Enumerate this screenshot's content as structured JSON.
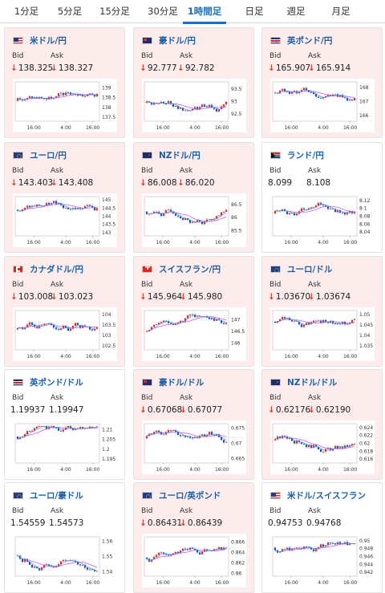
{
  "tabs": [
    {
      "label": "1分足",
      "active": false
    },
    {
      "label": "5分足",
      "active": false
    },
    {
      "label": "15分足",
      "active": false
    },
    {
      "label": "30分足",
      "active": false
    },
    {
      "label": "1時間足",
      "active": true
    },
    {
      "label": "日足",
      "active": false
    },
    {
      "label": "週足",
      "active": false
    },
    {
      "label": "月足",
      "active": false
    }
  ],
  "colors": {
    "accent": "#1a6fc4",
    "down_arrow": "#e23a2e",
    "pink_card": "#fcecec",
    "candle_up": "#e8262a",
    "candle_down": "#1e4fa8",
    "ma_long": "#e040e0",
    "ma_short": "#2aa8e0"
  },
  "labels": {
    "bid": "Bid",
    "ask": "Ask"
  },
  "cards": [
    {
      "pair": "米ドル/円",
      "flag": "us",
      "bg": "pink",
      "bid": "138.325",
      "ask": "138.327",
      "bid_down": true,
      "ask_down": true,
      "chart": {
        "ticks": [
          "139",
          "138.5",
          "138",
          "137.5"
        ],
        "times": [
          "16:00",
          "4:00",
          "16:00"
        ],
        "ylim": [
          137.3,
          139.3
        ]
      }
    },
    {
      "pair": "豪ドル/円",
      "flag": "au",
      "bg": "pink",
      "bid": "92.777",
      "ask": "92.782",
      "bid_down": true,
      "ask_down": true,
      "chart": {
        "ticks": [
          "93.5",
          "93",
          "92.5"
        ],
        "times": [
          "16:00",
          "4:00",
          "16:00"
        ],
        "ylim": [
          92.2,
          93.8
        ]
      }
    },
    {
      "pair": "英ポンド/円",
      "flag": "gb",
      "bg": "pink",
      "bid": "165.907",
      "ask": "165.914",
      "bid_down": true,
      "ask_down": true,
      "chart": {
        "ticks": [
          "168",
          "167",
          "166"
        ],
        "times": [
          "16:00",
          "4:00",
          "16:00"
        ],
        "ylim": [
          165.6,
          168.4
        ]
      }
    },
    {
      "pair": "ユーロ/円",
      "flag": "eu",
      "bg": "pink",
      "bid": "143.403",
      "ask": "143.408",
      "bid_down": true,
      "ask_down": true,
      "chart": {
        "ticks": [
          "145",
          "144.5",
          "144",
          "143.5",
          "143"
        ],
        "times": [
          "16:00",
          "4:00",
          "16:00"
        ],
        "ylim": [
          142.8,
          145.2
        ]
      }
    },
    {
      "pair": "NZドル/円",
      "flag": "nz",
      "bg": "pink",
      "bid": "86.008",
      "ask": "86.020",
      "bid_down": true,
      "ask_down": true,
      "chart": {
        "ticks": [
          "86.5",
          "86",
          "85.5"
        ],
        "times": [
          "16:00",
          "4:00",
          "16:00"
        ],
        "ylim": [
          85.3,
          86.8
        ]
      }
    },
    {
      "pair": "ランド/円",
      "flag": "za",
      "bg": "white",
      "bid": "8.099",
      "ask": "8.108",
      "bid_down": false,
      "ask_down": false,
      "chart": {
        "ticks": [
          "8.12",
          "8.1",
          "8.08",
          "8.06",
          "8.04"
        ],
        "times": [
          "16:00",
          "4:00",
          "16:00"
        ],
        "ylim": [
          8.03,
          8.13
        ]
      }
    },
    {
      "pair": "カナダドル/円",
      "flag": "ca",
      "bg": "pink",
      "bid": "103.008",
      "ask": "103.023",
      "bid_down": true,
      "ask_down": true,
      "chart": {
        "ticks": [
          "104",
          "103.5",
          "103",
          "102.5"
        ],
        "times": [
          "16:00",
          "4:00",
          "16:00"
        ],
        "ylim": [
          102.3,
          104.2
        ]
      }
    },
    {
      "pair": "スイスフラン/円",
      "flag": "ch",
      "bg": "pink",
      "bid": "145.964",
      "ask": "145.980",
      "bid_down": true,
      "ask_down": true,
      "chart": {
        "ticks": [
          "147",
          "146.5",
          "146"
        ],
        "times": [
          "16:00",
          "4:00",
          "16:00"
        ],
        "ylim": [
          145.7,
          147.4
        ]
      }
    },
    {
      "pair": "ユーロ/ドル",
      "flag": "eu",
      "bg": "pink",
      "bid": "1.03670",
      "ask": "1.03674",
      "bid_down": true,
      "ask_down": true,
      "chart": {
        "ticks": [
          "1.05",
          "1.045",
          "1.04",
          "1.035"
        ],
        "times": [
          "16:00",
          "4:00",
          "16:00"
        ],
        "ylim": [
          1.033,
          1.052
        ]
      }
    },
    {
      "pair": "英ポンド/ドル",
      "flag": "gb",
      "bg": "white",
      "bid": "1.19937",
      "ask": "1.19947",
      "bid_down": false,
      "ask_down": false,
      "chart": {
        "ticks": [
          "1.21",
          "1.205",
          "1.2",
          "1.195"
        ],
        "times": [
          "16:00",
          "4:00",
          "16:00"
        ],
        "ylim": [
          1.193,
          1.213
        ]
      }
    },
    {
      "pair": "豪ドル/ドル",
      "flag": "au",
      "bg": "pink",
      "bid": "0.67068",
      "ask": "0.67077",
      "bid_down": true,
      "ask_down": true,
      "chart": {
        "ticks": [
          "0.675",
          "0.67",
          "0.665"
        ],
        "times": [
          "16:00",
          "4:00",
          "16:00"
        ],
        "ylim": [
          0.6635,
          0.6765
        ]
      }
    },
    {
      "pair": "NZドル/ドル",
      "flag": "nz",
      "bg": "pink",
      "bid": "0.62176",
      "ask": "0.62190",
      "bid_down": true,
      "ask_down": true,
      "chart": {
        "ticks": [
          "0.624",
          "0.622",
          "0.62",
          "0.618",
          "0.616"
        ],
        "times": [
          "16:00",
          "4:00",
          "16:00"
        ],
        "ylim": [
          0.615,
          0.625
        ]
      }
    },
    {
      "pair": "ユーロ/豪ドル",
      "flag": "eu",
      "bg": "white",
      "bid": "1.54559",
      "ask": "1.54573",
      "bid_down": false,
      "ask_down": false,
      "chart": {
        "ticks": [
          "1.56",
          "1.55",
          "1.54"
        ],
        "times": [
          "16:00",
          "4:00",
          "16:00"
        ],
        "ylim": [
          1.537,
          1.563
        ]
      }
    },
    {
      "pair": "ユーロ/英ポンド",
      "flag": "eu",
      "bg": "pink",
      "bid": "0.86431",
      "ask": "0.86439",
      "bid_down": true,
      "ask_down": true,
      "chart": {
        "ticks": [
          "0.866",
          "0.864",
          "0.862",
          "0.86"
        ],
        "times": [
          "16:00",
          "4:00",
          "16:00"
        ],
        "ylim": [
          0.8595,
          0.867
        ]
      }
    },
    {
      "pair": "米ドル/スイスフラン",
      "flag": "us",
      "bg": "white",
      "bid": "0.94753",
      "ask": "0.94768",
      "bid_down": false,
      "ask_down": false,
      "chart": {
        "ticks": [
          "0.95",
          "0.948",
          "0.946",
          "0.944",
          "0.942"
        ],
        "times": [
          "16:00",
          "4:00",
          "16:00"
        ],
        "ylim": [
          0.941,
          0.951
        ]
      }
    }
  ]
}
